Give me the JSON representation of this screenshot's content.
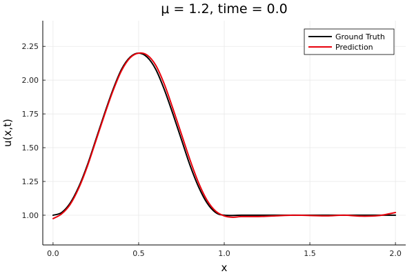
{
  "chart_data": {
    "type": "line",
    "title": "μ = 1.2, time = 0.0",
    "xlabel": "x",
    "ylabel": "u(x,t)",
    "xlim": [
      -0.06,
      2.06
    ],
    "ylim": [
      0.78,
      2.44
    ],
    "xticks": [
      0.0,
      0.5,
      1.0,
      1.5,
      2.0
    ],
    "xtick_labels": [
      "0.0",
      "0.5",
      "1.0",
      "1.5",
      "2.0"
    ],
    "yticks": [
      1.0,
      1.25,
      1.5,
      1.75,
      2.0,
      2.25
    ],
    "ytick_labels": [
      "1.00",
      "1.25",
      "1.50",
      "1.75",
      "2.00",
      "2.25"
    ],
    "grid": true,
    "legend_position": "top-right",
    "series": [
      {
        "name": "Ground Truth",
        "color": "#000000",
        "x": [
          0.0,
          0.05,
          0.1,
          0.15,
          0.2,
          0.25,
          0.3,
          0.35,
          0.4,
          0.45,
          0.5,
          0.55,
          0.6,
          0.65,
          0.7,
          0.75,
          0.8,
          0.85,
          0.9,
          0.95,
          1.0,
          1.1,
          1.2,
          1.3,
          1.4,
          1.5,
          1.6,
          1.7,
          1.8,
          1.9,
          2.0
        ],
        "y": [
          1.0,
          1.02,
          1.09,
          1.21,
          1.37,
          1.56,
          1.75,
          1.93,
          2.08,
          2.17,
          2.2,
          2.17,
          2.08,
          1.93,
          1.75,
          1.56,
          1.37,
          1.21,
          1.09,
          1.02,
          1.0,
          1.0,
          1.0,
          1.0,
          1.0,
          1.0,
          1.0,
          1.0,
          1.0,
          1.0,
          1.0
        ]
      },
      {
        "name": "Prediction",
        "color": "#e8000b",
        "x": [
          0.0,
          0.05,
          0.1,
          0.15,
          0.2,
          0.25,
          0.3,
          0.35,
          0.4,
          0.45,
          0.5,
          0.55,
          0.6,
          0.65,
          0.7,
          0.75,
          0.8,
          0.85,
          0.9,
          0.95,
          1.0,
          1.05,
          1.1,
          1.2,
          1.3,
          1.4,
          1.5,
          1.6,
          1.7,
          1.8,
          1.9,
          2.0
        ],
        "y": [
          0.975,
          1.01,
          1.08,
          1.2,
          1.36,
          1.55,
          1.74,
          1.92,
          2.07,
          2.165,
          2.2,
          2.185,
          2.11,
          1.97,
          1.79,
          1.6,
          1.41,
          1.24,
          1.11,
          1.03,
          0.995,
          0.985,
          0.99,
          0.99,
          0.995,
          1.0,
          0.998,
          0.995,
          1.0,
          0.993,
          0.997,
          1.02
        ]
      }
    ]
  }
}
